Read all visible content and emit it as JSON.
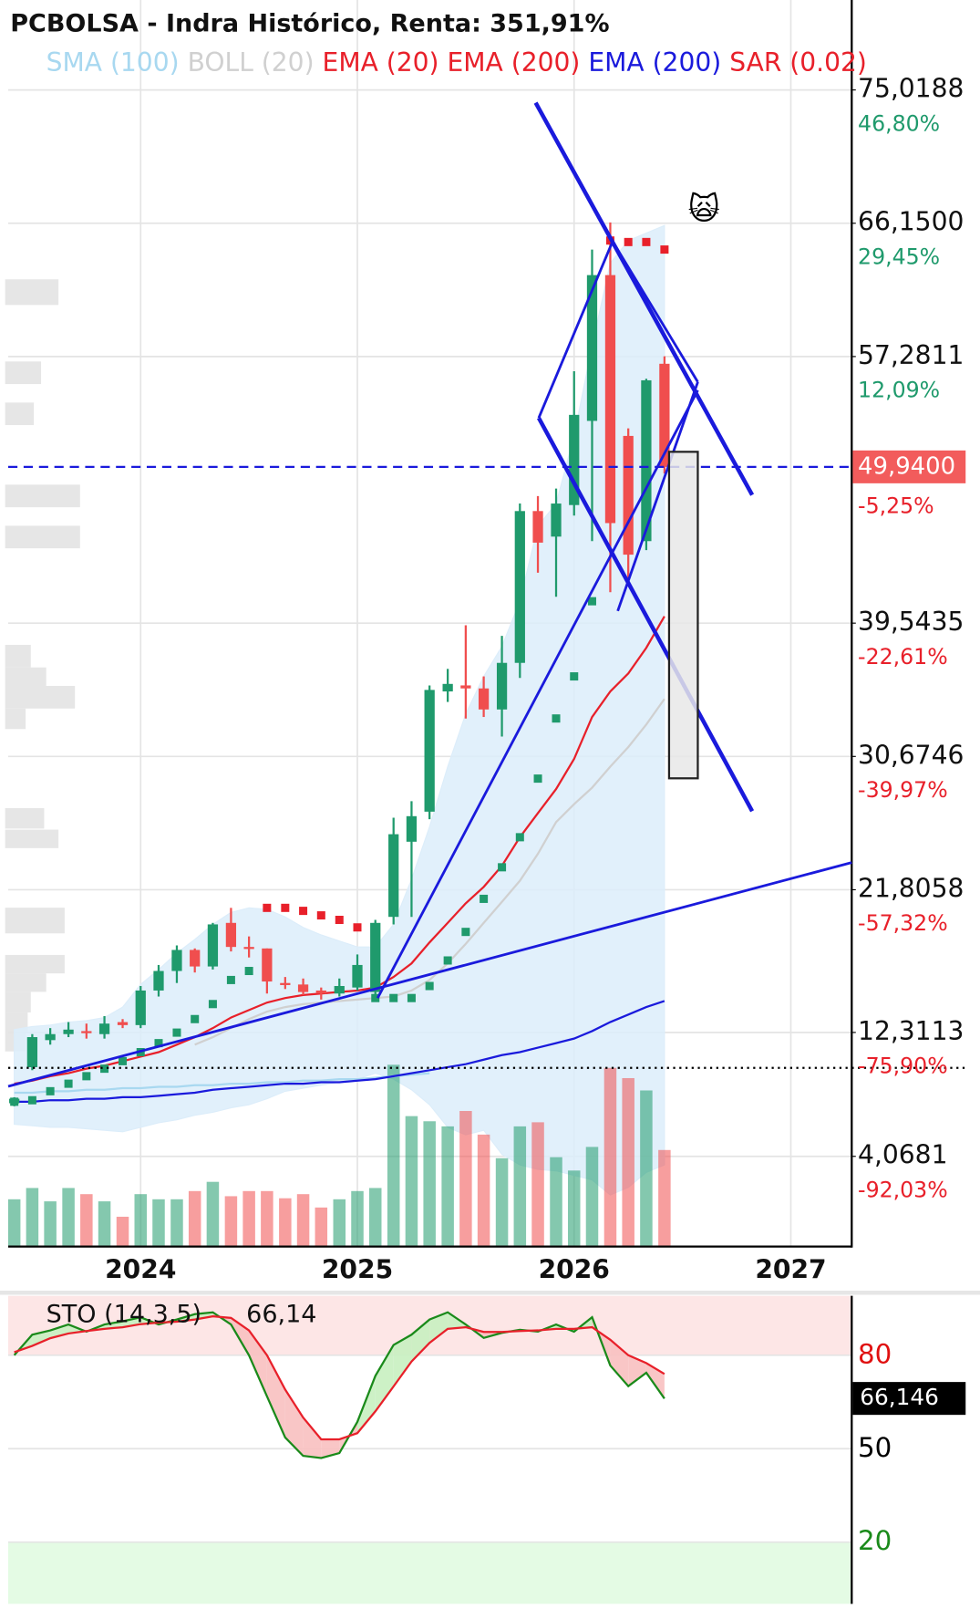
{
  "chart_data": [
    {
      "type": "candlestick",
      "title": "PCBOLSA - Indra Histórico, Renta: 351,91%",
      "x": [
        2023.417,
        2023.5,
        2023.583,
        2023.667,
        2023.75,
        2023.833,
        2023.917,
        2024.0,
        2024.083,
        2024.167,
        2024.25,
        2024.333,
        2024.417,
        2024.5,
        2024.583,
        2024.667,
        2024.75,
        2024.833,
        2024.917,
        2025.0,
        2025.083,
        2025.167,
        2025.25,
        2025.333,
        2025.417,
        2025.5,
        2025.583,
        2025.667,
        2025.75,
        2025.833,
        2025.917,
        2026.0,
        2026.083,
        2026.167,
        2026.25,
        2026.333,
        2026.417
      ],
      "xlim": [
        2023.389,
        2027.281
      ],
      "xticks": [
        2024,
        2025,
        2026,
        2027
      ],
      "ylim": [
        -2.0,
        81.0
      ],
      "yticks": [
        {
          "value": 75.0188,
          "label": "75,0188"
        },
        {
          "value": 66.15,
          "label": "66,1500"
        },
        {
          "value": 57.2811,
          "label": "57,2811"
        },
        {
          "value": 39.5435,
          "label": "39,5435"
        },
        {
          "value": 30.6746,
          "label": "30,6746"
        },
        {
          "value": 21.8058,
          "label": "21,8058"
        },
        {
          "value": 12.3113,
          "label": "12,3113"
        },
        {
          "value": 4.0681,
          "label": "4,0681"
        }
      ],
      "ytick_changes": [
        "46,80%",
        "29,45%",
        "12,09%",
        "-22,61%",
        "-39,97%",
        "-57,32%",
        "-75,90%",
        "-92,03%"
      ],
      "grid": true,
      "up_color": "#1f9a6c",
      "down_color": "#f04e4e",
      "ohlc": [
        [
          7.6,
          8.0,
          7.4,
          7.9
        ],
        [
          10.0,
          12.2,
          9.8,
          12.0
        ],
        [
          11.8,
          12.6,
          11.5,
          12.2
        ],
        [
          12.2,
          13.0,
          12.0,
          12.5
        ],
        [
          12.4,
          12.9,
          11.9,
          12.3
        ],
        [
          12.2,
          13.4,
          11.9,
          12.9
        ],
        [
          13.0,
          13.2,
          12.6,
          12.8
        ],
        [
          12.8,
          15.4,
          12.6,
          15.1
        ],
        [
          15.1,
          16.8,
          14.7,
          16.4
        ],
        [
          16.4,
          18.1,
          15.6,
          17.8
        ],
        [
          17.8,
          17.9,
          16.3,
          16.7
        ],
        [
          16.7,
          19.6,
          16.5,
          19.5
        ],
        [
          19.6,
          20.6,
          17.7,
          18.0
        ],
        [
          18.0,
          18.7,
          17.3,
          17.9
        ],
        [
          17.9,
          17.9,
          14.9,
          15.7
        ],
        [
          15.6,
          16.0,
          15.2,
          15.5
        ],
        [
          15.5,
          15.9,
          14.8,
          15.0
        ],
        [
          15.1,
          15.3,
          14.5,
          14.9
        ],
        [
          14.9,
          15.9,
          14.7,
          15.4
        ],
        [
          15.3,
          17.5,
          15.1,
          16.8
        ],
        [
          15.0,
          19.8,
          14.6,
          19.6
        ],
        [
          20.0,
          26.6,
          19.5,
          25.5
        ],
        [
          25.0,
          27.7,
          20.0,
          26.7
        ],
        [
          27.0,
          35.4,
          26.5,
          35.1
        ],
        [
          35.0,
          36.5,
          34.3,
          35.5
        ],
        [
          35.4,
          39.4,
          33.2,
          35.2
        ],
        [
          35.2,
          36.0,
          33.3,
          33.8
        ],
        [
          33.8,
          38.7,
          32.0,
          36.9
        ],
        [
          36.9,
          47.5,
          35.9,
          47.0
        ],
        [
          47.0,
          48.0,
          42.9,
          44.9
        ],
        [
          45.3,
          48.5,
          41.3,
          47.5
        ],
        [
          47.4,
          56.3,
          46.7,
          53.4
        ],
        [
          53.0,
          64.4,
          45.0,
          62.7
        ],
        [
          62.7,
          66.2,
          41.6,
          46.2
        ],
        [
          52.0,
          52.5,
          42.5,
          44.1
        ],
        [
          45.0,
          55.8,
          44.4,
          55.7
        ],
        [
          56.8,
          57.3,
          49.5,
          49.94
        ]
      ],
      "volume": [
        45,
        56,
        43,
        56,
        50,
        43,
        28,
        50,
        45,
        45,
        53,
        62,
        48,
        53,
        53,
        46,
        50,
        37,
        45,
        53,
        56,
        176,
        126,
        121,
        116,
        131,
        108,
        85,
        116,
        120,
        86,
        73,
        96,
        173,
        163,
        151,
        93
      ],
      "series": [
        {
          "name": "SMA (100)",
          "color": "#a8d8f0",
          "values": [
            8.3,
            8.3,
            8.4,
            8.4,
            8.5,
            8.5,
            8.6,
            8.6,
            8.7,
            8.7,
            8.8,
            8.8,
            8.9,
            8.9,
            9.0,
            9.0,
            9.1,
            9.1,
            9.2,
            9.2,
            9.3,
            9.4,
            9.5,
            9.6,
            null,
            null,
            null,
            null,
            null,
            null,
            null,
            null,
            null,
            null,
            null,
            null,
            null
          ]
        },
        {
          "name": "BOLL (20)",
          "color": "#d0d0d0",
          "values": [
            null,
            null,
            null,
            null,
            null,
            null,
            null,
            null,
            null,
            null,
            11.5,
            12.0,
            12.6,
            13.2,
            13.7,
            14.0,
            14.2,
            14.3,
            14.4,
            14.5,
            14.6,
            14.7,
            15.1,
            15.8,
            16.9,
            18.2,
            19.6,
            21.0,
            22.4,
            24.2,
            26.3,
            27.5,
            28.6,
            30.0,
            31.3,
            32.8,
            34.5
          ],
          "upper": [
            12.5,
            12.7,
            12.8,
            13.0,
            13.1,
            13.3,
            14.0,
            15.5,
            16.5,
            17.6,
            18.5,
            19.5,
            20.3,
            20.6,
            20.5,
            20.0,
            19.3,
            18.8,
            18.4,
            18.0,
            18.0,
            19.5,
            22.5,
            26.0,
            30.0,
            33.5,
            36.0,
            38.0,
            41.0,
            46.0,
            47.5,
            52.0,
            58.0,
            63.5,
            65.0,
            65.5,
            66.0
          ],
          "lower": [
            6.2,
            6.1,
            6.0,
            6.0,
            5.9,
            5.8,
            5.7,
            6.0,
            6.3,
            6.5,
            6.8,
            7.0,
            7.3,
            7.5,
            7.9,
            8.4,
            8.6,
            8.8,
            9.0,
            9.2,
            9.6,
            9.2,
            8.5,
            7.5,
            6.0,
            5.5,
            5.8,
            4.2,
            3.5,
            3.2,
            3.1,
            2.8,
            2.5,
            1.5,
            2.0,
            3.0,
            3.5
          ],
          "band_color": "#dcedfa"
        },
        {
          "name": "EMA (20)",
          "color": "#e8202a",
          "values": [
            8.9,
            9.1,
            9.4,
            9.6,
            9.9,
            10.1,
            10.4,
            10.7,
            11.0,
            11.5,
            12.0,
            12.6,
            13.3,
            13.8,
            14.3,
            14.6,
            14.8,
            14.9,
            15.0,
            15.1,
            15.3,
            16.0,
            16.9,
            18.3,
            19.6,
            20.9,
            22.0,
            23.4,
            25.3,
            26.9,
            28.5,
            30.5,
            33.3,
            35.0,
            36.2,
            37.9,
            40.0
          ]
        },
        {
          "name": "EMA (200)",
          "color": "#e8202a",
          "values": [
            null,
            null,
            null,
            null,
            null,
            null,
            null,
            null,
            null,
            null,
            null,
            null,
            null,
            null,
            null,
            null,
            null,
            null,
            null,
            null,
            null,
            null,
            null,
            null,
            null,
            null,
            null,
            null,
            null,
            null,
            null,
            null,
            null,
            null,
            null,
            null,
            null
          ]
        },
        {
          "name": "EMA (200)",
          "color": "#1a1adc",
          "values": [
            7.7,
            7.7,
            7.8,
            7.8,
            7.9,
            7.9,
            8.0,
            8.0,
            8.1,
            8.2,
            8.3,
            8.5,
            8.6,
            8.7,
            8.8,
            8.9,
            8.9,
            9.0,
            9.0,
            9.1,
            9.2,
            9.4,
            9.6,
            9.8,
            10.0,
            10.2,
            10.5,
            10.8,
            11.0,
            11.3,
            11.6,
            11.9,
            12.4,
            13.0,
            13.5,
            14.0,
            14.4
          ]
        },
        {
          "name": "SAR (0.02)",
          "color": "#e8202a",
          "values": [
            7.7,
            7.8,
            8.4,
            8.9,
            9.4,
            9.9,
            10.4,
            11.0,
            11.6,
            12.3,
            13.2,
            14.2,
            15.8,
            16.4,
            20.6,
            20.6,
            20.4,
            20.1,
            19.8,
            19.3,
            14.6,
            14.6,
            14.6,
            15.4,
            17.1,
            19.0,
            21.2,
            23.3,
            25.3,
            29.2,
            33.2,
            36.0,
            41.0,
            65.0,
            64.9,
            64.9,
            64.4
          ]
        }
      ],
      "last_price": {
        "value": 49.94,
        "label": "49,9400",
        "change": "-5,25%"
      },
      "reference_line": 9.95,
      "annotation": "🙀"
    },
    {
      "type": "line",
      "title": "STO (14,3,5)",
      "value_label": "66,14",
      "x": [
        2023.417,
        2023.5,
        2023.583,
        2023.667,
        2023.75,
        2023.833,
        2023.917,
        2024.0,
        2024.083,
        2024.167,
        2024.25,
        2024.333,
        2024.417,
        2024.5,
        2024.583,
        2024.667,
        2024.75,
        2024.833,
        2024.917,
        2025.0,
        2025.083,
        2025.167,
        2025.25,
        2025.333,
        2025.417,
        2025.5,
        2025.583,
        2025.667,
        2025.75,
        2025.833,
        2025.917,
        2026.0,
        2026.083,
        2026.167,
        2026.25,
        2026.333,
        2026.417
      ],
      "xlim": [
        2023.389,
        2027.281
      ],
      "ylim": [
        0.2,
        99.1
      ],
      "yticks": [
        80,
        50,
        20
      ],
      "ytick_colors": [
        "#e01010",
        "#000000",
        "#1a8a1a"
      ],
      "current": {
        "value": 66.146,
        "label": "66,146"
      },
      "series": [
        {
          "color": "#1a8a1a",
          "values": [
            80.0,
            86.6,
            88.0,
            89.9,
            87.6,
            89.9,
            90.9,
            92.2,
            89.9,
            91.5,
            93.2,
            93.8,
            89.9,
            80.0,
            66.8,
            53.6,
            47.7,
            47.0,
            48.6,
            58.6,
            73.4,
            83.3,
            86.6,
            91.5,
            93.8,
            89.9,
            85.6,
            87.2,
            88.2,
            87.6,
            89.9,
            87.6,
            92.2,
            76.7,
            70.1,
            74.4,
            66.1
          ]
        },
        {
          "color": "#e8202a",
          "values": [
            81.0,
            83.0,
            85.5,
            87.0,
            87.8,
            88.5,
            89.0,
            90.0,
            90.5,
            90.8,
            91.5,
            92.5,
            92.0,
            88.0,
            80.0,
            69.0,
            60.0,
            53.0,
            53.0,
            55.0,
            62.0,
            70.0,
            78.0,
            84.0,
            88.5,
            89.0,
            87.5,
            87.5,
            87.8,
            88.0,
            88.5,
            88.5,
            89.0,
            85.0,
            80.0,
            77.5,
            74.0
          ]
        }
      ]
    }
  ]
}
